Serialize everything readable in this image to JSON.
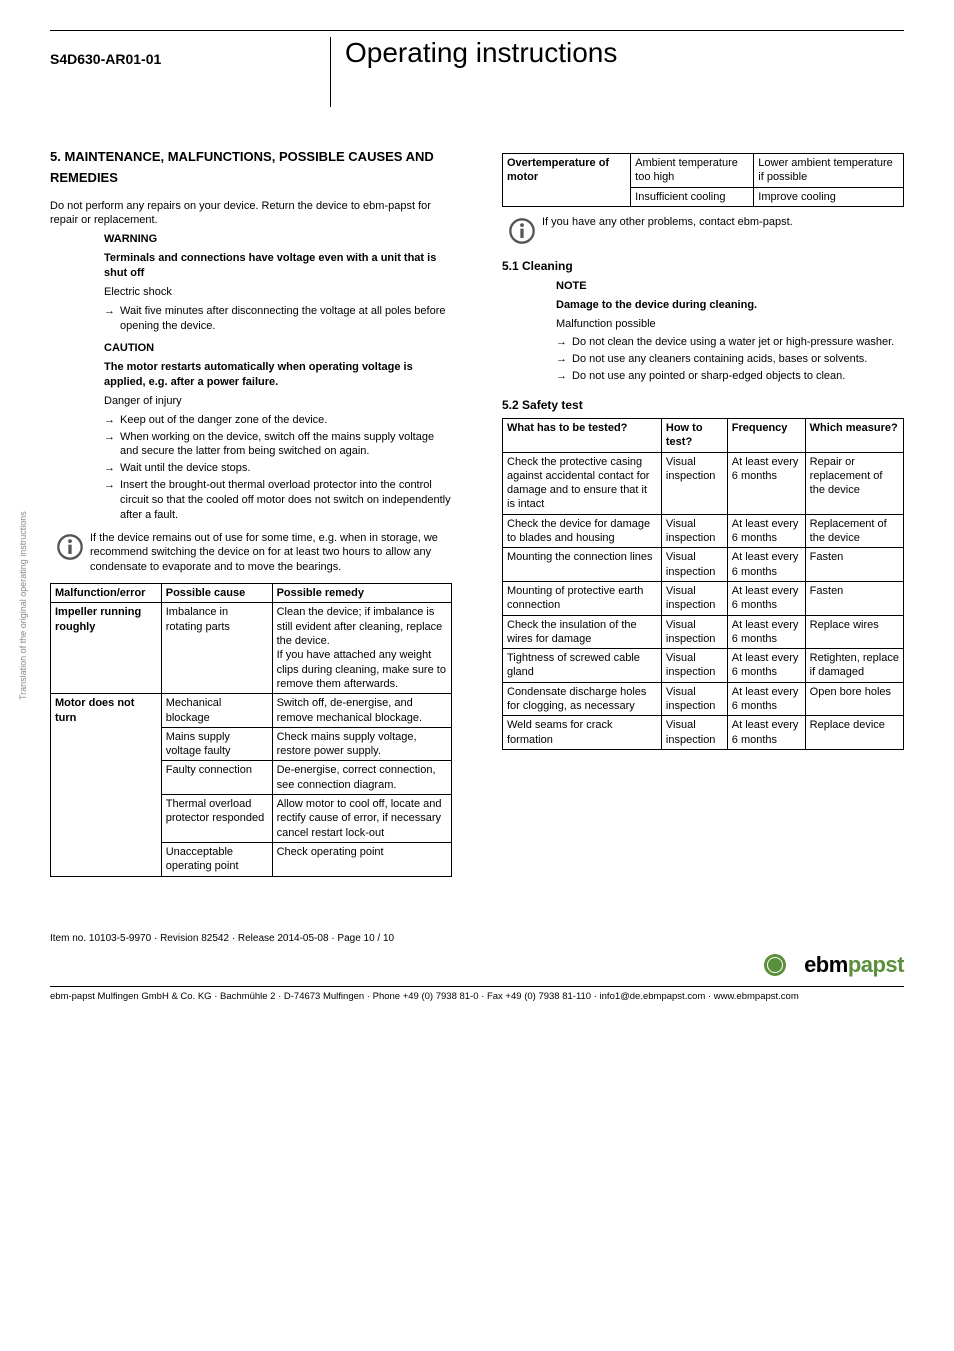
{
  "side_text": "Translation of the original operating instructions",
  "header": {
    "doc_code": "S4D630-AR01-01",
    "title": "Operating instructions"
  },
  "section5": {
    "heading": "5. MAINTENANCE, MALFUNCTIONS, POSSIBLE CAUSES AND REMEDIES",
    "intro": "Do not perform any repairs on your device. Return the device to ebm-papst for repair or replacement.",
    "warning": {
      "label": "WARNING",
      "bold": "Terminals and connections have voltage even with a unit that is shut off",
      "sub": "Electric shock",
      "items": [
        "Wait five minutes after disconnecting the voltage at all poles before opening the device."
      ]
    },
    "caution": {
      "label": "CAUTION",
      "bold": "The motor restarts automatically when operating voltage is applied, e.g. after a power failure.",
      "sub": "Danger of injury",
      "items": [
        "Keep out of the danger zone of the device.",
        "When working on the device, switch off the mains supply voltage and secure the latter from being switched on again.",
        "Wait until the device stops.",
        "Insert the brought-out thermal overload protector into the control circuit so that the cooled off motor does not switch on independently after a fault."
      ]
    },
    "info1": "If the device remains out of use for some time, e.g. when in storage, we recommend switching the device on for at least two hours to allow any condensate to evaporate and to move the bearings."
  },
  "malfunction_table": {
    "headers": [
      "Malfunction/error",
      "Possible cause",
      "Possible remedy"
    ],
    "rows": [
      {
        "error": "Impeller running roughly",
        "cause": "Imbalance in rotating parts",
        "remedy": "Clean the device; if imbalance is still evident after cleaning, replace the device.\nIf you have attached any weight clips during cleaning, make sure to remove them afterwards.",
        "error_rowspan": 1
      },
      {
        "error": "Motor does not turn",
        "cause": "Mechanical blockage",
        "remedy": "Switch off, de-energise, and remove mechanical blockage.",
        "error_rowspan": 5
      },
      {
        "error": "",
        "cause": "Mains supply voltage faulty",
        "remedy": "Check mains supply voltage,\nrestore power supply."
      },
      {
        "error": "",
        "cause": "Faulty connection",
        "remedy": "De-energise, correct connection, see connection diagram."
      },
      {
        "error": "",
        "cause": "Thermal overload protector responded",
        "remedy": "Allow motor to cool off, locate and rectify cause of error, if necessary cancel restart lock-out"
      },
      {
        "error": "",
        "cause": "Unacceptable operating point",
        "remedy": "Check operating point"
      }
    ]
  },
  "overtemp_table": {
    "rows": [
      {
        "c0": "Overtemperature of motor",
        "c1": "Ambient temperature too high",
        "c2": "Lower ambient temperature if possible",
        "c0_rowspan": 2
      },
      {
        "c0": "",
        "c1": "Insufficient cooling",
        "c2": "Improve cooling"
      }
    ]
  },
  "info2": "If you have any other problems, contact ebm-papst.",
  "cleaning": {
    "heading": "5.1 Cleaning",
    "note_label": "NOTE",
    "note_bold": "Damage to the device during cleaning.",
    "note_sub": "Malfunction possible",
    "items": [
      "Do not clean the device using a water jet or high-pressure washer.",
      "Do not use any cleaners containing acids, bases or solvents.",
      "Do not use any pointed or sharp-edged objects to clean."
    ]
  },
  "safety": {
    "heading": "5.2 Safety test",
    "headers": [
      "What has to be tested?",
      "How to test?",
      "Frequency",
      "Which measure?"
    ],
    "rows": [
      {
        "what": "Check the protective casing against accidental contact for damage and to ensure that it is intact",
        "how": "Visual inspection",
        "freq": "At least every 6 months",
        "measure": "Repair or replacement of the device"
      },
      {
        "what": "Check the device for damage to blades and housing",
        "how": "Visual inspection",
        "freq": "At least every 6 months",
        "measure": "Replacement of the device"
      },
      {
        "what": "Mounting the connection lines",
        "how": "Visual inspection",
        "freq": "At least every 6 months",
        "measure": "Fasten"
      },
      {
        "what": "Mounting of protective earth connection",
        "how": "Visual inspection",
        "freq": "At least every 6 months",
        "measure": "Fasten"
      },
      {
        "what": "Check the insulation of the wires for damage",
        "how": "Visual inspection",
        "freq": "At least every 6 months",
        "measure": "Replace wires"
      },
      {
        "what": "Tightness of screwed cable gland",
        "how": "Visual inspection",
        "freq": "At least every 6 months",
        "measure": "Retighten, replace if damaged"
      },
      {
        "what": "Condensate discharge holes for clogging, as necessary",
        "how": "Visual inspection",
        "freq": "At least every 6 months",
        "measure": "Open bore holes"
      },
      {
        "what": "Weld seams for crack formation",
        "how": "Visual inspection",
        "freq": "At least every 6 months",
        "measure": "Replace device"
      }
    ]
  },
  "footer": {
    "item_line": "Item no. 10103-5-9970 · Revision 82542 · Release 2014-05-08 · Page 10 / 10",
    "logo_dark": "ebm",
    "logo_green": "papst",
    "company": "ebm-papst Mulfingen GmbH & Co. KG · Bachmühle 2 · D-74673 Mulfingen · Phone +49 (0) 7938 81-0 · Fax +49 (0) 7938 81-110 · info1@de.ebmpapst.com · www.ebmpapst.com"
  }
}
